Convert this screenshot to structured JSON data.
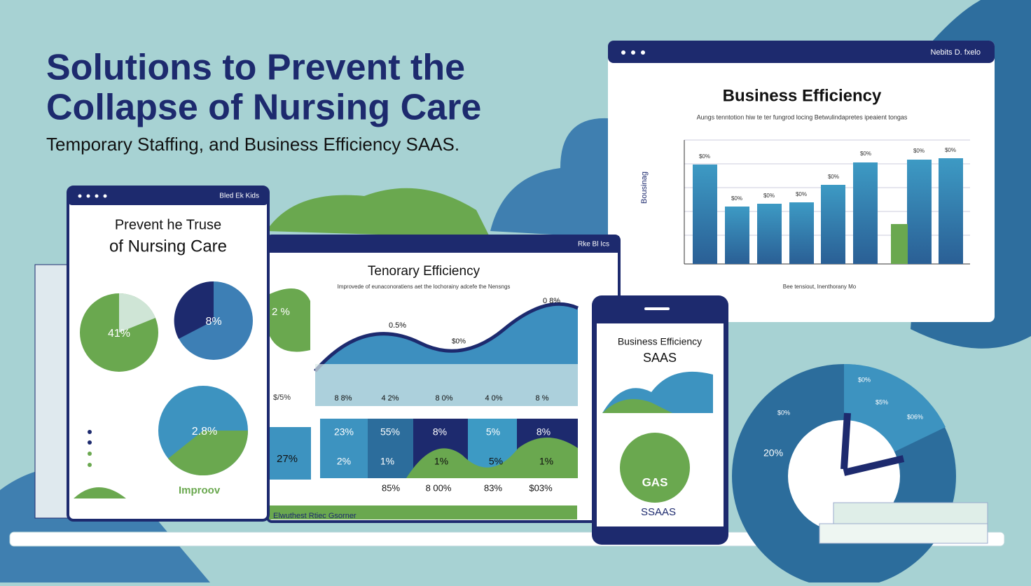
{
  "header": {
    "title_lines": [
      "Solutions to Prevent the",
      "Collapse  of Nursing Care"
    ],
    "subtitle": "Temporary Staffing,    and Business Efficiency SAAS."
  },
  "tablet": {
    "header": "Bled Ek Kids",
    "title_lines": [
      "Prevent he Truse",
      "of Nursing Care"
    ],
    "pie_labels": [
      "41%",
      "8%",
      "2.8%"
    ],
    "footer": "Improov"
  },
  "laptop": {
    "header": "Rke Bl Ics",
    "title": "Tenorary Efficiency",
    "subtitle": "Improvede of eunaconoratiens aet the lochorainy adcefe the Nensngs",
    "side_labels": [
      "2 %",
      "$/5%",
      "27%"
    ],
    "curve_labels": [
      "0.5%",
      "$0%",
      "0 8%"
    ],
    "axis_labels": [
      "8 8%",
      "4 2%",
      "8 0%",
      "4 0%",
      "8 %"
    ],
    "tile_rows": [
      [
        "23%",
        "55%",
        "8%",
        "5%",
        "8%"
      ],
      [
        "2%",
        "1%",
        "1%",
        "5%",
        "1%"
      ],
      [
        "85%",
        "8 00%",
        "83%",
        "$03%"
      ]
    ],
    "footer": "Elwuthest Rtiec Gsorner"
  },
  "monitor": {
    "header": "Nebits D. fxelo",
    "title": "Business Efficiency",
    "subtitle": "Aungs tenntotion hiw te ter fungrod locing Betwulindapretes ipeaient tongas",
    "y_label": "Bousinag",
    "bar_labels": [
      "$0%",
      "$0%",
      "$0%",
      "$0%",
      "$0%",
      "$0%",
      "$0%",
      "$0%"
    ],
    "caption": "Bee tensiout, Inenthorany Mo"
  },
  "phone": {
    "title_lines": [
      "Business Efficiency",
      "SAAS"
    ],
    "badge": "GAS",
    "footer": "SSAAS"
  },
  "clock": {
    "labels": [
      "20%",
      "$0%",
      "$0%",
      "$5%",
      "$06%"
    ]
  }
}
